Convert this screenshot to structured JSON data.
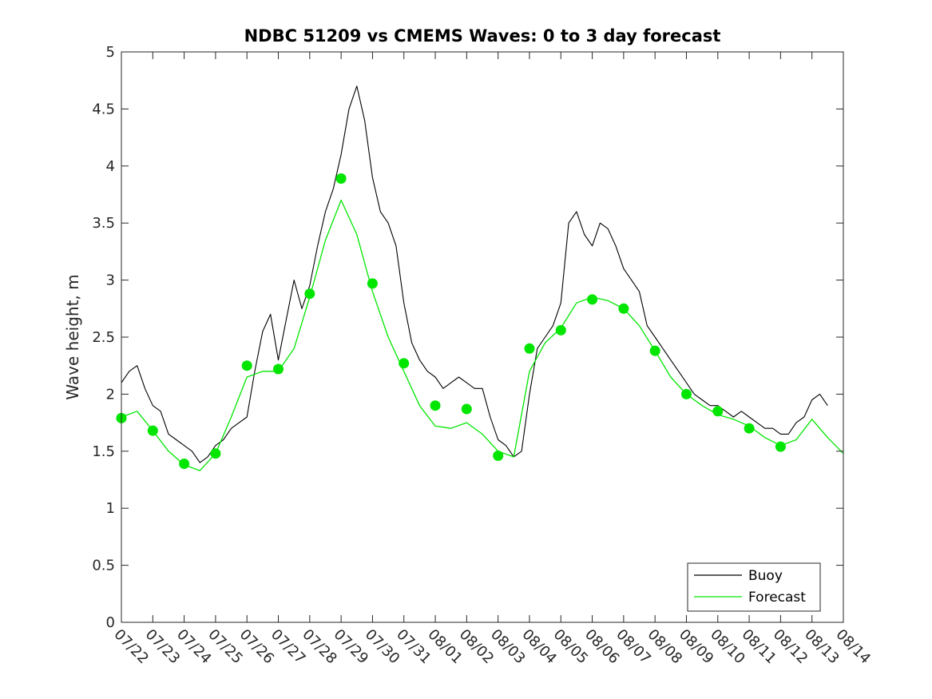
{
  "chart_data": {
    "type": "line",
    "title": "NDBC 51209 vs CMEMS Waves: 0 to 3 day forecast",
    "xlabel": "",
    "ylabel": "Wave height, m",
    "ylim": [
      0,
      5
    ],
    "yticks": [
      "0",
      "0.5",
      "1",
      "1.5",
      "2",
      "2.5",
      "3",
      "3.5",
      "4",
      "4.5",
      "5"
    ],
    "xlim": [
      "07/22",
      "08/14"
    ],
    "xticks": [
      "07/22",
      "07/23",
      "07/24",
      "07/25",
      "07/26",
      "07/27",
      "07/28",
      "07/29",
      "07/30",
      "07/31",
      "08/01",
      "08/02",
      "08/03",
      "08/04",
      "08/05",
      "08/06",
      "08/07",
      "08/08",
      "08/09",
      "08/10",
      "08/11",
      "08/12",
      "08/13",
      "08/14"
    ],
    "tick_label_rotation_deg": 45,
    "grid": false,
    "legend_position": "bottom-right",
    "legend": [
      {
        "name": "Buoy",
        "color": "#000000"
      },
      {
        "name": "Forecast",
        "color": "#00e600"
      }
    ],
    "series": [
      {
        "name": "Buoy",
        "color": "#000000",
        "x": [
          "07/22",
          "07/22 06h",
          "07/22 12h",
          "07/22 18h",
          "07/23",
          "07/23 06h",
          "07/23 12h",
          "07/23 18h",
          "07/24",
          "07/24 06h",
          "07/24 12h",
          "07/24 18h",
          "07/25",
          "07/25 06h",
          "07/25 12h",
          "07/25 18h",
          "07/26",
          "07/26 06h",
          "07/26 12h",
          "07/26 18h",
          "07/27",
          "07/27 06h",
          "07/27 12h",
          "07/27 18h",
          "07/28",
          "07/28 06h",
          "07/28 12h",
          "07/28 18h",
          "07/29",
          "07/29 06h",
          "07/29 12h",
          "07/29 18h",
          "07/30",
          "07/30 06h",
          "07/30 12h",
          "07/30 18h",
          "07/31",
          "07/31 06h",
          "07/31 12h",
          "07/31 18h",
          "08/01",
          "08/01 06h",
          "08/01 12h",
          "08/01 18h",
          "08/02",
          "08/02 06h",
          "08/02 12h",
          "08/02 18h",
          "08/03",
          "08/03 06h",
          "08/03 12h",
          "08/03 18h",
          "08/04",
          "08/04 06h",
          "08/04 12h",
          "08/04 18h",
          "08/05",
          "08/05 06h",
          "08/05 12h",
          "08/05 18h",
          "08/06",
          "08/06 06h",
          "08/06 12h",
          "08/06 18h",
          "08/07",
          "08/07 06h",
          "08/07 12h",
          "08/07 18h",
          "08/08",
          "08/08 06h",
          "08/08 12h",
          "08/08 18h",
          "08/09",
          "08/09 06h",
          "08/09 12h",
          "08/09 18h",
          "08/10",
          "08/10 06h",
          "08/10 12h",
          "08/10 18h",
          "08/11",
          "08/11 06h",
          "08/11 12h",
          "08/11 18h",
          "08/12",
          "08/12 06h",
          "08/12 12h",
          "08/12 18h",
          "08/13",
          "08/13 06h",
          "08/13 12h"
        ],
        "values": [
          2.1,
          2.2,
          2.25,
          2.05,
          1.9,
          1.85,
          1.65,
          1.6,
          1.55,
          1.5,
          1.4,
          1.45,
          1.55,
          1.6,
          1.7,
          1.75,
          1.8,
          2.2,
          2.55,
          2.7,
          2.3,
          2.65,
          3.0,
          2.75,
          2.95,
          3.3,
          3.6,
          3.8,
          4.1,
          4.5,
          4.7,
          4.4,
          3.9,
          3.6,
          3.5,
          3.3,
          2.8,
          2.45,
          2.3,
          2.2,
          2.15,
          2.05,
          2.1,
          2.15,
          2.1,
          2.05,
          2.05,
          1.8,
          1.6,
          1.55,
          1.45,
          1.5,
          2.0,
          2.4,
          2.5,
          2.6,
          2.8,
          3.5,
          3.6,
          3.4,
          3.3,
          3.5,
          3.45,
          3.3,
          3.1,
          3.0,
          2.9,
          2.6,
          2.5,
          2.4,
          2.3,
          2.2,
          2.1,
          2.0,
          1.95,
          1.9,
          1.9,
          1.85,
          1.8,
          1.85,
          1.8,
          1.75,
          1.7,
          1.7,
          1.65,
          1.65,
          1.75,
          1.8,
          1.95,
          2.0,
          1.9
        ]
      },
      {
        "name": "Forecast",
        "color": "#00e600",
        "x": [
          "07/22",
          "07/22 12h",
          "07/23",
          "07/23 12h",
          "07/24",
          "07/24 12h",
          "07/25",
          "07/25 12h",
          "07/26",
          "07/26 12h",
          "07/27",
          "07/27 12h",
          "07/28",
          "07/28 12h",
          "07/29",
          "07/29 12h",
          "07/30",
          "07/30 12h",
          "07/31",
          "07/31 12h",
          "08/01",
          "08/01 12h",
          "08/02",
          "08/02 12h",
          "08/03",
          "08/03 12h",
          "08/04",
          "08/04 12h",
          "08/05",
          "08/05 12h",
          "08/06",
          "08/06 12h",
          "08/07",
          "08/07 12h",
          "08/08",
          "08/08 12h",
          "08/09",
          "08/09 12h",
          "08/10",
          "08/10 12h",
          "08/11",
          "08/11 12h",
          "08/12",
          "08/12 12h",
          "08/13",
          "08/13 12h",
          "08/14"
        ],
        "values": [
          1.8,
          1.85,
          1.68,
          1.5,
          1.38,
          1.33,
          1.48,
          1.8,
          2.15,
          2.2,
          2.2,
          2.4,
          2.85,
          3.35,
          3.7,
          3.4,
          2.9,
          2.5,
          2.2,
          1.9,
          1.72,
          1.7,
          1.75,
          1.65,
          1.5,
          1.45,
          2.2,
          2.45,
          2.58,
          2.8,
          2.85,
          2.82,
          2.75,
          2.6,
          2.38,
          2.15,
          2.0,
          1.9,
          1.82,
          1.78,
          1.72,
          1.62,
          1.55,
          1.6,
          1.78,
          1.62,
          1.48
        ]
      }
    ],
    "markers": {
      "name": "Forecast",
      "color": "#00e600",
      "x": [
        "07/22",
        "07/23",
        "07/24",
        "07/25",
        "07/26",
        "07/27",
        "07/28",
        "07/29",
        "07/30",
        "07/31",
        "08/01",
        "08/02",
        "08/03",
        "08/04",
        "08/05",
        "08/06",
        "08/07",
        "08/08",
        "08/09",
        "08/10",
        "08/11",
        "08/12"
      ],
      "values": [
        1.79,
        1.68,
        1.39,
        1.48,
        2.25,
        2.22,
        2.88,
        3.89,
        2.97,
        2.27,
        1.9,
        1.87,
        1.46,
        2.4,
        2.56,
        2.83,
        2.75,
        2.38,
        2.0,
        1.85,
        1.7,
        1.54
      ]
    }
  }
}
